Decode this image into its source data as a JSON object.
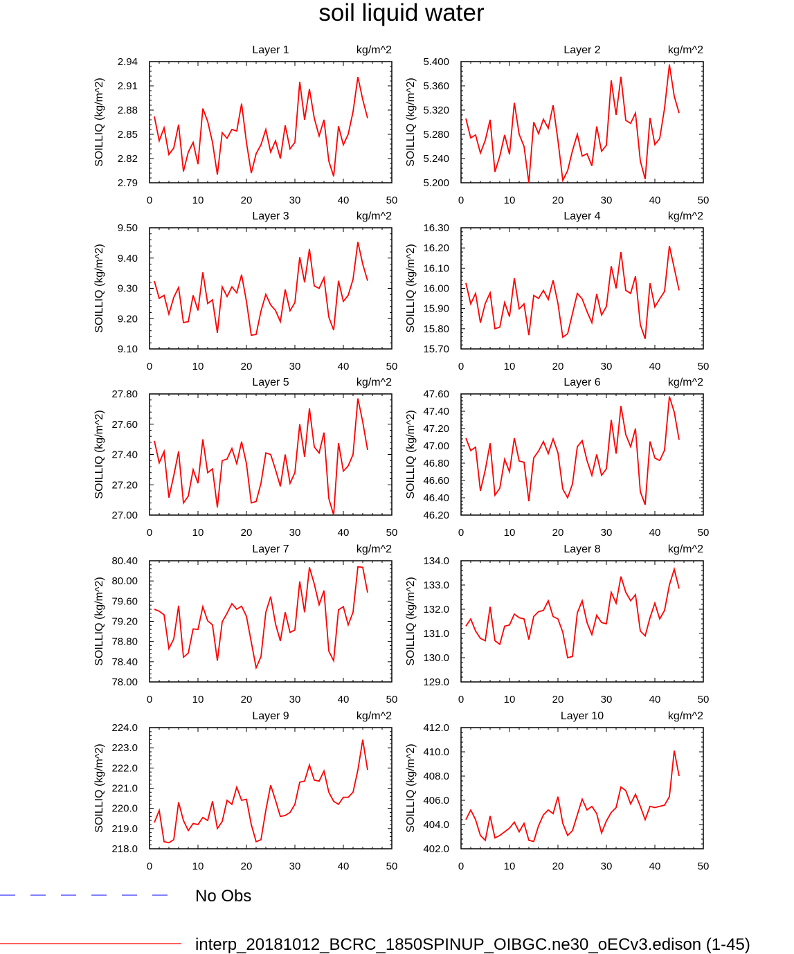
{
  "title": "soil liquid water",
  "units": "kg/m^2",
  "ylabel": "SOILLIQ  (kg/m^2)",
  "colors": {
    "model": "#ff0000",
    "obs": "#3333ff",
    "axis": "#000000"
  },
  "legend": {
    "obs_label": "No Obs",
    "model_label": "interp_20181012_BCRC_1850SPINUP_OIBGC.ne30_oECv3.edison (1-45)"
  },
  "chart_data": [
    {
      "type": "line",
      "title": "Layer 1",
      "units": "kg/m^2",
      "ylabel": "SOILLIQ  (kg/m^2)",
      "xlim": [
        0,
        50
      ],
      "xticks": [
        "0",
        "10",
        "20",
        "30",
        "40",
        "50"
      ],
      "ylim": [
        2.79,
        2.94
      ],
      "yticks": [
        "2.79",
        "2.82",
        "2.85",
        "2.88",
        "2.91",
        "2.94"
      ],
      "series": [
        {
          "x_start": 1,
          "values": [
            2.872,
            2.842,
            2.858,
            2.825,
            2.833,
            2.862,
            2.804,
            2.828,
            2.84,
            2.813,
            2.882,
            2.866,
            2.84,
            2.8,
            2.852,
            2.845,
            2.856,
            2.854,
            2.888,
            2.84,
            2.802,
            2.826,
            2.837,
            2.856,
            2.828,
            2.842,
            2.82,
            2.861,
            2.832,
            2.84,
            2.915,
            2.868,
            2.906,
            2.87,
            2.848,
            2.868,
            2.817,
            2.798,
            2.86,
            2.837,
            2.85,
            2.878,
            2.921,
            2.893,
            2.87
          ]
        }
      ]
    },
    {
      "type": "line",
      "title": "Layer 2",
      "units": "kg/m^2",
      "ylabel": "SOILLIQ  (kg/m^2)",
      "xlim": [
        0,
        50
      ],
      "xticks": [
        "0",
        "10",
        "20",
        "30",
        "40",
        "50"
      ],
      "ylim": [
        5.2,
        5.4
      ],
      "yticks": [
        "5.200",
        "5.240",
        "5.280",
        "5.320",
        "5.360",
        "5.400"
      ],
      "series": [
        {
          "x_start": 1,
          "values": [
            5.306,
            5.274,
            5.279,
            5.249,
            5.27,
            5.304,
            5.218,
            5.244,
            5.279,
            5.247,
            5.332,
            5.28,
            5.26,
            5.2,
            5.3,
            5.281,
            5.305,
            5.29,
            5.328,
            5.27,
            5.204,
            5.22,
            5.253,
            5.28,
            5.244,
            5.248,
            5.228,
            5.293,
            5.252,
            5.262,
            5.369,
            5.312,
            5.375,
            5.303,
            5.298,
            5.315,
            5.236,
            5.206,
            5.307,
            5.263,
            5.273,
            5.323,
            5.395,
            5.343,
            5.315
          ]
        }
      ]
    },
    {
      "type": "line",
      "title": "Layer 3",
      "units": "kg/m^2",
      "ylabel": "SOILLIQ  (kg/m^2)",
      "xlim": [
        0,
        50
      ],
      "xticks": [
        "0",
        "10",
        "20",
        "30",
        "40",
        "50"
      ],
      "ylim": [
        9.1,
        9.5
      ],
      "yticks": [
        "9.10",
        "9.20",
        "9.30",
        "9.40",
        "9.50"
      ],
      "series": [
        {
          "x_start": 1,
          "values": [
            9.324,
            9.267,
            9.277,
            9.215,
            9.27,
            9.303,
            9.187,
            9.19,
            9.277,
            9.227,
            9.353,
            9.25,
            9.262,
            9.153,
            9.305,
            9.273,
            9.305,
            9.285,
            9.345,
            9.257,
            9.145,
            9.148,
            9.225,
            9.28,
            9.245,
            9.227,
            9.19,
            9.296,
            9.226,
            9.253,
            9.403,
            9.32,
            9.43,
            9.308,
            9.3,
            9.335,
            9.205,
            9.162,
            9.325,
            9.257,
            9.277,
            9.33,
            9.453,
            9.38,
            9.325
          ]
        }
      ]
    },
    {
      "type": "line",
      "title": "Layer 4",
      "units": "kg/m^2",
      "ylabel": "SOILLIQ  (kg/m^2)",
      "xlim": [
        0,
        50
      ],
      "xticks": [
        "0",
        "10",
        "20",
        "30",
        "40",
        "50"
      ],
      "ylim": [
        15.7,
        16.3
      ],
      "yticks": [
        "15.70",
        "15.80",
        "15.90",
        "16.00",
        "16.10",
        "16.20",
        "16.30"
      ],
      "series": [
        {
          "x_start": 1,
          "values": [
            16.027,
            15.923,
            15.975,
            15.83,
            15.925,
            15.978,
            15.8,
            15.808,
            15.93,
            15.86,
            16.05,
            15.898,
            15.923,
            15.768,
            15.965,
            15.95,
            15.99,
            15.945,
            16.04,
            15.925,
            15.758,
            15.775,
            15.875,
            15.975,
            15.948,
            15.885,
            15.83,
            15.972,
            15.868,
            15.91,
            16.11,
            16.0,
            16.18,
            15.99,
            15.975,
            16.06,
            15.82,
            15.75,
            16.025,
            15.908,
            15.948,
            15.985,
            16.21,
            16.1,
            15.99
          ]
        }
      ]
    },
    {
      "type": "line",
      "title": "Layer 5",
      "units": "kg/m^2",
      "ylabel": "SOILLIQ  (kg/m^2)",
      "xlim": [
        0,
        50
      ],
      "xticks": [
        "0",
        "10",
        "20",
        "30",
        "40",
        "50"
      ],
      "ylim": [
        27.0,
        27.8
      ],
      "yticks": [
        "27.00",
        "27.20",
        "27.40",
        "27.60",
        "27.80"
      ],
      "series": [
        {
          "x_start": 1,
          "values": [
            27.49,
            27.345,
            27.42,
            27.115,
            27.26,
            27.42,
            27.08,
            27.125,
            27.3,
            27.21,
            27.5,
            27.28,
            27.305,
            27.05,
            27.36,
            27.37,
            27.44,
            27.34,
            27.485,
            27.34,
            27.08,
            27.09,
            27.21,
            27.41,
            27.4,
            27.3,
            27.19,
            27.4,
            27.21,
            27.28,
            27.6,
            27.385,
            27.705,
            27.45,
            27.41,
            27.545,
            27.11,
            27.0,
            27.475,
            27.29,
            27.325,
            27.4,
            27.77,
            27.615,
            27.43
          ]
        }
      ]
    },
    {
      "type": "line",
      "title": "Layer 6",
      "units": "kg/m^2",
      "ylabel": "SOILLIQ  (kg/m^2)",
      "xlim": [
        0,
        50
      ],
      "xticks": [
        "0",
        "10",
        "20",
        "30",
        "40",
        "50"
      ],
      "ylim": [
        46.2,
        47.6
      ],
      "yticks": [
        "46.20",
        "46.40",
        "46.60",
        "46.80",
        "47.00",
        "47.20",
        "47.40",
        "47.60"
      ],
      "series": [
        {
          "x_start": 1,
          "values": [
            47.09,
            46.945,
            46.985,
            46.48,
            46.72,
            47.03,
            46.43,
            46.51,
            46.845,
            46.7,
            47.09,
            46.825,
            46.81,
            46.36,
            46.86,
            46.94,
            47.05,
            46.91,
            47.08,
            46.92,
            46.5,
            46.4,
            46.56,
            46.99,
            47.06,
            46.83,
            46.66,
            46.9,
            46.66,
            46.735,
            47.3,
            46.91,
            47.46,
            47.13,
            46.99,
            47.2,
            46.47,
            46.32,
            47.05,
            46.86,
            46.83,
            46.95,
            47.57,
            47.39,
            47.07
          ]
        }
      ]
    },
    {
      "type": "line",
      "title": "Layer 7",
      "units": "kg/m^2",
      "ylabel": "SOILLIQ  (kg/m^2)",
      "xlim": [
        0,
        50
      ],
      "xticks": [
        "0",
        "10",
        "20",
        "30",
        "40",
        "50"
      ],
      "ylim": [
        78.0,
        80.4
      ],
      "yticks": [
        "78.00",
        "78.40",
        "78.80",
        "79.20",
        "79.60",
        "80.00",
        "80.40"
      ],
      "series": [
        {
          "x_start": 1,
          "values": [
            79.44,
            79.4,
            79.33,
            78.66,
            78.85,
            79.51,
            78.49,
            78.57,
            79.05,
            79.04,
            79.49,
            79.21,
            79.13,
            78.42,
            79.19,
            79.36,
            79.55,
            79.44,
            79.5,
            79.3,
            78.79,
            78.28,
            78.5,
            79.38,
            79.69,
            79.15,
            78.81,
            79.38,
            78.98,
            79.03,
            79.99,
            79.38,
            80.27,
            79.94,
            79.53,
            79.81,
            78.61,
            78.42,
            79.43,
            79.49,
            79.13,
            79.38,
            80.28,
            80.27,
            79.77
          ]
        }
      ]
    },
    {
      "type": "line",
      "title": "Layer 8",
      "units": "kg/m^2",
      "ylabel": "SOILLIQ  (kg/m^2)",
      "xlim": [
        0,
        50
      ],
      "xticks": [
        "0",
        "10",
        "20",
        "30",
        "40",
        "50"
      ],
      "ylim": [
        129.0,
        134.0
      ],
      "yticks": [
        "129.0",
        "130.0",
        "131.0",
        "132.0",
        "133.0",
        "134.0"
      ],
      "series": [
        {
          "x_start": 1,
          "values": [
            131.3,
            131.6,
            131.1,
            130.8,
            130.7,
            132.1,
            130.7,
            130.55,
            131.3,
            131.35,
            131.8,
            131.65,
            131.6,
            130.75,
            131.7,
            131.9,
            131.95,
            132.35,
            131.7,
            131.6,
            131.05,
            130.0,
            130.05,
            131.85,
            132.35,
            131.45,
            130.95,
            131.75,
            131.45,
            131.4,
            132.7,
            132.25,
            133.35,
            132.7,
            132.35,
            132.6,
            131.1,
            130.9,
            131.65,
            132.25,
            131.6,
            131.95,
            133.0,
            133.65,
            132.85
          ]
        }
      ]
    },
    {
      "type": "line",
      "title": "Layer 9",
      "units": "kg/m^2",
      "ylabel": "SOILLIQ  (kg/m^2)",
      "xlim": [
        0,
        50
      ],
      "xticks": [
        "0",
        "10",
        "20",
        "30",
        "40",
        "50"
      ],
      "ylim": [
        218.0,
        224.0
      ],
      "yticks": [
        "218.0",
        "219.0",
        "220.0",
        "221.0",
        "222.0",
        "223.0",
        "224.0"
      ],
      "series": [
        {
          "x_start": 1,
          "values": [
            219.3,
            219.9,
            218.35,
            218.3,
            218.45,
            220.3,
            219.4,
            218.9,
            219.25,
            219.2,
            219.55,
            219.4,
            220.35,
            219.0,
            219.35,
            220.4,
            220.2,
            221.05,
            220.4,
            220.45,
            219.2,
            218.35,
            218.45,
            219.9,
            221.15,
            220.4,
            219.6,
            219.65,
            219.8,
            220.2,
            221.3,
            221.35,
            222.15,
            221.4,
            221.35,
            221.85,
            220.8,
            220.35,
            220.2,
            220.55,
            220.55,
            220.8,
            221.9,
            223.4,
            221.9
          ]
        }
      ]
    },
    {
      "type": "line",
      "title": "Layer 10",
      "units": "kg/m^2",
      "ylabel": "SOILLIQ  (kg/m^2)",
      "xlim": [
        0,
        50
      ],
      "xticks": [
        "0",
        "10",
        "20",
        "30",
        "40",
        "50"
      ],
      "ylim": [
        402.0,
        412.0
      ],
      "yticks": [
        "402.0",
        "404.0",
        "406.0",
        "408.0",
        "410.0",
        "412.0"
      ],
      "series": [
        {
          "x_start": 1,
          "values": [
            404.4,
            405.2,
            404.4,
            403.1,
            402.7,
            404.7,
            402.9,
            403.1,
            403.4,
            403.7,
            404.2,
            403.4,
            404.1,
            402.7,
            402.6,
            403.9,
            404.8,
            405.2,
            404.9,
            406.3,
            404.1,
            403.1,
            403.5,
            404.8,
            406.1,
            405.2,
            405.5,
            404.9,
            403.3,
            404.3,
            405.0,
            405.4,
            407.1,
            406.8,
            405.7,
            406.5,
            405.5,
            404.4,
            405.5,
            405.4,
            405.5,
            405.6,
            406.3,
            410.1,
            408.0
          ]
        }
      ]
    }
  ]
}
